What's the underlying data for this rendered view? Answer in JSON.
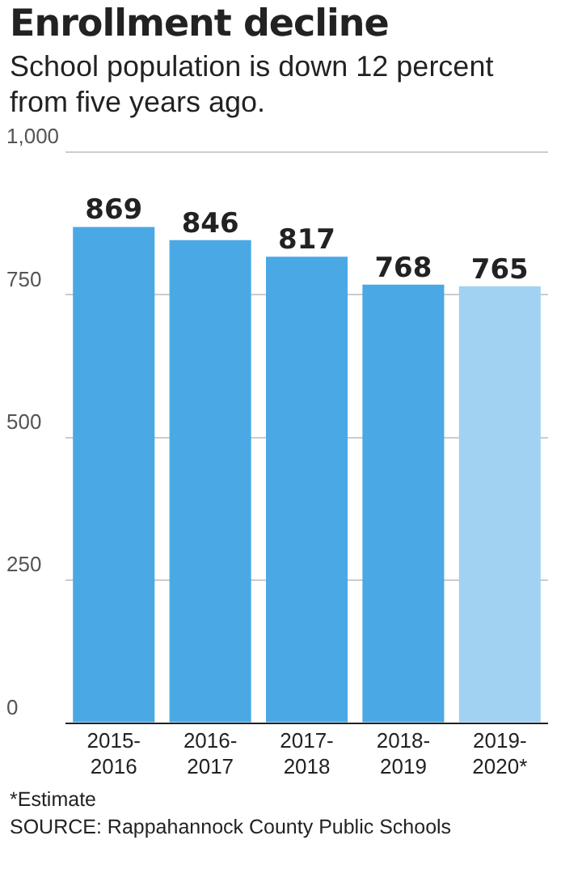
{
  "chart_data": {
    "type": "bar",
    "title": "Enrollment decline",
    "subtitle": "School population is down 12 percent from five years ago.",
    "categories": [
      "2015-\n2016",
      "2016-\n2017",
      "2017-\n2018",
      "2018-\n2019",
      "2019-\n2020*"
    ],
    "values": [
      869,
      846,
      817,
      768,
      765
    ],
    "colors": [
      "#4aa9e4",
      "#4aa9e4",
      "#4aa9e4",
      "#4aa9e4",
      "#a2d2f2"
    ],
    "ylim": [
      0,
      1000
    ],
    "yticks": [
      0,
      250,
      500,
      750,
      {
        "value": 1000,
        "label": "1,000"
      }
    ],
    "grid": "y",
    "data_labels": true,
    "annotations": [
      "*Estimate",
      "SOURCE: Rappahannock County Public Schools"
    ]
  }
}
